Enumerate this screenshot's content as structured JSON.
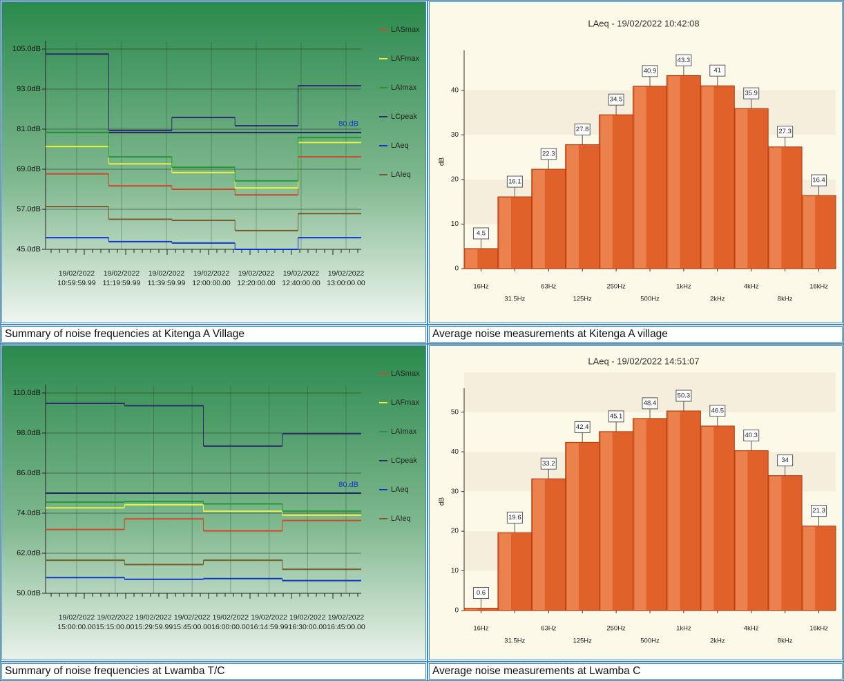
{
  "chart_data": [
    {
      "type": "line",
      "step": true,
      "caption": "Summary of noise frequencies at Kitenga A Village",
      "ylim": [
        45,
        105
      ],
      "yticks": [
        {
          "value": 45,
          "label": "45.0dB"
        },
        {
          "value": 57,
          "label": "57.0dB"
        },
        {
          "value": 69,
          "label": "69.0dB"
        },
        {
          "value": 81,
          "label": "81.0dB"
        },
        {
          "value": 93,
          "label": "93.0dB"
        },
        {
          "value": 105,
          "label": "105.0dB"
        }
      ],
      "xticks": [
        "19/02/2022\n10:59:59.99",
        "19/02/2022\n11:19:59.99",
        "19/02/2022\n11:39:59.99",
        "19/02/2022\n12:00:00.00",
        "19/02/2022\n12:20:00.00",
        "19/02/2022\n12:40:00.00",
        "19/02/2022\n13:00:00.00"
      ],
      "threshold": {
        "value": 80,
        "label": "80.dB"
      },
      "grid": true,
      "series": [
        {
          "name": "LASmax",
          "color": "#d4452a",
          "values": [
            67.6,
            64,
            63,
            61.3,
            72.7
          ]
        },
        {
          "name": "LAFmax",
          "color": "#e9f23e",
          "values": [
            75.8,
            70.6,
            68,
            63.4,
            77
          ]
        },
        {
          "name": "LAImax",
          "color": "#1f9a35",
          "values": [
            80,
            72.7,
            69.6,
            65.5,
            78.5
          ]
        },
        {
          "name": "LCpeak",
          "color": "#2c2a6e",
          "values": [
            103.5,
            80.6,
            84.5,
            82,
            94
          ]
        },
        {
          "name": "LAeq",
          "color": "#1234d0",
          "values": [
            48.5,
            47.3,
            46.9,
            45,
            48.5
          ]
        },
        {
          "name": "LAIeq",
          "color": "#7a5a28",
          "values": [
            57.8,
            54,
            53.7,
            50.6,
            55.7
          ]
        }
      ]
    },
    {
      "type": "bar",
      "caption": "Average noise measurements at Kitenga A village",
      "title": "LAeq - 19/02/2022 10:42:08",
      "y_label": "dB",
      "color": "#e0622a",
      "categories": [
        "16Hz",
        "31.5Hz",
        "63Hz",
        "125Hz",
        "250Hz",
        "500Hz",
        "1kHz",
        "2kHz",
        "4kHz",
        "8kHz",
        "16kHz"
      ],
      "values": [
        4.5,
        16.1,
        22.3,
        27.8,
        34.5,
        40.9,
        43.3,
        41.0,
        35.9,
        27.3,
        16.4
      ],
      "ylim": [
        0,
        48
      ],
      "yticks": [
        0,
        10,
        20,
        30,
        40
      ]
    },
    {
      "type": "line",
      "step": true,
      "caption": "Summary of noise frequencies at Lwamba T/C",
      "ylim": [
        50,
        110
      ],
      "yticks": [
        {
          "value": 50,
          "label": "50.0dB"
        },
        {
          "value": 62,
          "label": "62.0dB"
        },
        {
          "value": 74,
          "label": "74.0dB"
        },
        {
          "value": 86,
          "label": "86.0dB"
        },
        {
          "value": 98,
          "label": "98.0dB"
        },
        {
          "value": 110,
          "label": "110.0dB"
        }
      ],
      "xticks": [
        "19/02/2022\n15:00:00.00",
        "19/02/2022\n15:15:00.00",
        "19/02/2022\n15:29:59.99",
        "19/02/2022\n15:45:00.00",
        "19/02/2022\n16:00:00.00",
        "19/02/2022\n16:14:59.99",
        "19/02/2022\n16:30:00.00",
        "19/02/2022\n16:45:00.00"
      ],
      "threshold": {
        "value": 80,
        "label": "80.dB"
      },
      "grid": true,
      "series": [
        {
          "name": "LASmax",
          "color": "#d4452a",
          "values": [
            69.1,
            72.3,
            68.7,
            71.8
          ]
        },
        {
          "name": "LAFmax",
          "color": "#e9f23e",
          "values": [
            75.6,
            76.5,
            74.6,
            73.4
          ]
        },
        {
          "name": "LAImax",
          "color": "#1f9a35",
          "values": [
            77.3,
            77.5,
            76.8,
            74.6
          ]
        },
        {
          "name": "LCpeak",
          "color": "#2c2a6e",
          "values": [
            106.9,
            106.2,
            94.1,
            97.8
          ]
        },
        {
          "name": "LAeq",
          "color": "#1234d0",
          "values": [
            54.7,
            54.2,
            54.4,
            53.8
          ]
        },
        {
          "name": "LAIeq",
          "color": "#7a5a28",
          "values": [
            59.9,
            58.6,
            59.9,
            57.2
          ]
        }
      ]
    },
    {
      "type": "bar",
      "caption": "Average noise measurements at Lwamba C",
      "title": "LAeq - 19/02/2022 14:51:07",
      "y_label": "dB",
      "color": "#e0622a",
      "categories": [
        "16Hz",
        "31.5Hz",
        "63Hz",
        "125Hz",
        "250Hz",
        "500Hz",
        "1kHz",
        "2kHz",
        "4kHz",
        "8kHz",
        "16kHz"
      ],
      "values": [
        0.6,
        19.6,
        33.2,
        42.4,
        45.1,
        48.4,
        50.3,
        46.5,
        40.3,
        34.0,
        21.3
      ],
      "ylim": [
        0,
        55
      ],
      "yticks": [
        0,
        10,
        20,
        30,
        40,
        50
      ]
    }
  ]
}
